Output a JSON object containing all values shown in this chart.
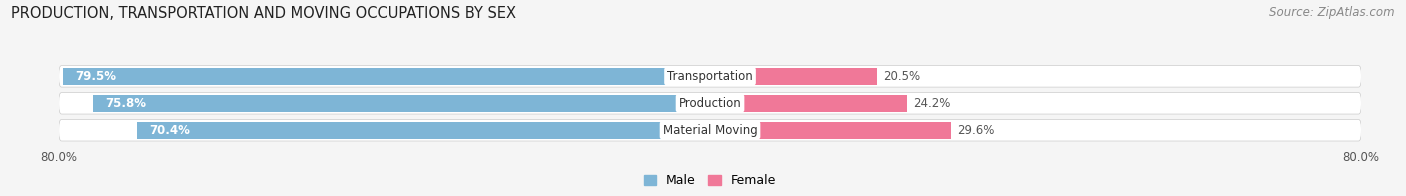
{
  "title": "PRODUCTION, TRANSPORTATION AND MOVING OCCUPATIONS BY SEX",
  "source": "Source: ZipAtlas.com",
  "categories": [
    "Transportation",
    "Production",
    "Material Moving"
  ],
  "male_values": [
    79.5,
    75.8,
    70.4
  ],
  "female_values": [
    20.5,
    24.2,
    29.6
  ],
  "male_color": "#7eb5d6",
  "female_color": "#f07898",
  "male_label": "Male",
  "female_label": "Female",
  "xlim": 80.0,
  "bg_color": "#f5f5f5",
  "bar_bg_color": "#e0e0e8",
  "title_fontsize": 10.5,
  "source_fontsize": 8.5,
  "cat_fontsize": 8.5,
  "value_fontsize": 8.5
}
